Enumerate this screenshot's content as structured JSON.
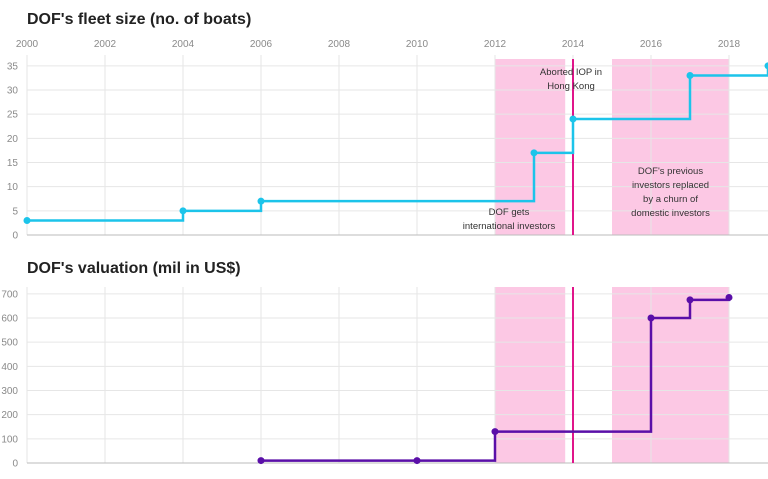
{
  "chart_data": [
    {
      "type": "line",
      "title": "DOF's fleet size (no. of boats)",
      "x_ticks": [
        "2000",
        "2002",
        "2004",
        "2006",
        "2008",
        "2010",
        "2012",
        "2014",
        "2016",
        "2018"
      ],
      "y_ticks": [
        "0",
        "5",
        "10",
        "15",
        "20",
        "25",
        "30",
        "35"
      ],
      "xlim": [
        2000,
        2019
      ],
      "ylim": [
        0,
        36
      ],
      "step": true,
      "grid": true,
      "colors": {
        "line": "#1cc4ea",
        "shade": "#fcc8e4",
        "event_line": "#e0158a"
      },
      "series": [
        {
          "x": [
            2000,
            2004,
            2006,
            2013,
            2014,
            2017,
            2019
          ],
          "y": [
            3,
            5,
            7,
            17,
            24,
            33,
            35
          ]
        }
      ],
      "shaded_periods": [
        {
          "start": 2012,
          "end": 2013.8,
          "label_lines": [
            "DOF gets",
            "international investors"
          ]
        },
        {
          "start": 2015,
          "end": 2018,
          "label_lines": [
            "DOF's previous",
            "investors replaced",
            "by a churn of",
            "domestic investors"
          ]
        }
      ],
      "event_line": {
        "x": 2014,
        "label_lines": [
          "Aborted IOP in",
          "Hong Kong"
        ]
      }
    },
    {
      "type": "line",
      "title": "DOF's valuation (mil in US$)",
      "x_ticks": [],
      "y_ticks": [
        "0",
        "100",
        "200",
        "300",
        "400",
        "500",
        "600",
        "700"
      ],
      "xlim": [
        2000,
        2019
      ],
      "ylim": [
        0,
        720
      ],
      "step": true,
      "grid": true,
      "colors": {
        "line": "#5a0fa8",
        "shade": "#fcc8e4",
        "event_line": "#e0158a"
      },
      "series": [
        {
          "x": [
            2006,
            2010,
            2012,
            2016,
            2017,
            2018
          ],
          "y": [
            10,
            10,
            130,
            600,
            675,
            685
          ]
        }
      ],
      "shaded_periods": [
        {
          "start": 2012,
          "end": 2013.8,
          "label_lines": []
        },
        {
          "start": 2015,
          "end": 2018,
          "label_lines": []
        }
      ],
      "event_line": {
        "x": 2014,
        "label_lines": []
      }
    }
  ]
}
